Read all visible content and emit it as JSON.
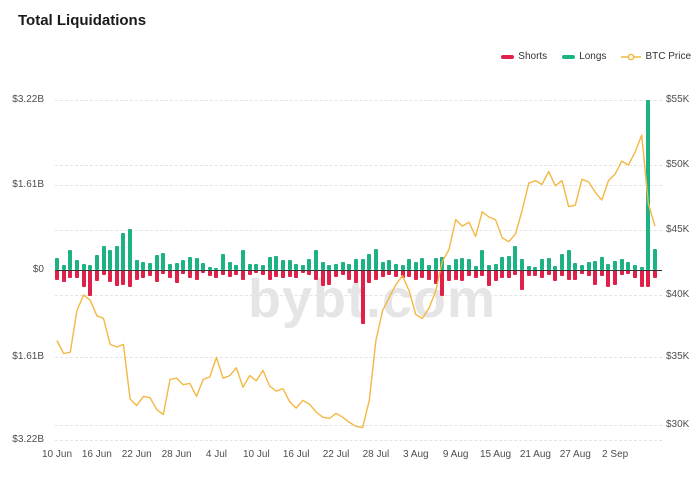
{
  "title": "Total Liquidations",
  "watermark": "bybt.com",
  "colors": {
    "shorts": "#e02048",
    "longs": "#1db283",
    "btc_line": "#f3b843",
    "grid": "#e4e4e4",
    "baseline": "#333333",
    "axis_text": "#4d4d4d",
    "title_text": "#1a1a1a",
    "watermark_text": "#e5e5e5",
    "background": "#ffffff"
  },
  "legend": [
    {
      "label": "Shorts",
      "type": "bar",
      "color": "#e02048"
    },
    {
      "label": "Longs",
      "type": "bar",
      "color": "#1db283"
    },
    {
      "label": "BTC Price",
      "type": "line",
      "color": "#f3b843"
    }
  ],
  "chart_data": {
    "type": "bar",
    "subtype": "combo-dual-axis",
    "grid": true,
    "legend_position": "top-right",
    "x": [
      "10 Jun",
      "11 Jun",
      "12 Jun",
      "13 Jun",
      "14 Jun",
      "15 Jun",
      "16 Jun",
      "17 Jun",
      "18 Jun",
      "19 Jun",
      "20 Jun",
      "21 Jun",
      "22 Jun",
      "23 Jun",
      "24 Jun",
      "25 Jun",
      "26 Jun",
      "27 Jun",
      "28 Jun",
      "29 Jun",
      "30 Jun",
      "1 Jul",
      "2 Jul",
      "3 Jul",
      "4 Jul",
      "5 Jul",
      "6 Jul",
      "7 Jul",
      "8 Jul",
      "9 Jul",
      "10 Jul",
      "11 Jul",
      "12 Jul",
      "13 Jul",
      "14 Jul",
      "15 Jul",
      "16 Jul",
      "17 Jul",
      "18 Jul",
      "19 Jul",
      "20 Jul",
      "21 Jul",
      "22 Jul",
      "23 Jul",
      "24 Jul",
      "25 Jul",
      "26 Jul",
      "27 Jul",
      "28 Jul",
      "29 Jul",
      "30 Jul",
      "31 Jul",
      "1 Aug",
      "2 Aug",
      "3 Aug",
      "4 Aug",
      "5 Aug",
      "6 Aug",
      "7 Aug",
      "8 Aug",
      "9 Aug",
      "10 Aug",
      "11 Aug",
      "12 Aug",
      "13 Aug",
      "14 Aug",
      "15 Aug",
      "16 Aug",
      "17 Aug",
      "18 Aug",
      "19 Aug",
      "20 Aug",
      "21 Aug",
      "22 Aug",
      "23 Aug",
      "24 Aug",
      "25 Aug",
      "26 Aug",
      "27 Aug",
      "28 Aug",
      "29 Aug",
      "30 Aug",
      "31 Aug",
      "1 Sep",
      "2 Sep",
      "3 Sep",
      "4 Sep",
      "5 Sep",
      "6 Sep",
      "7 Sep",
      "8 Sep"
    ],
    "x_tick_every": 6,
    "x_tick_labels": [
      "10 Jun",
      "16 Jun",
      "22 Jun",
      "28 Jun",
      "4 Jul",
      "10 Jul",
      "16 Jul",
      "22 Jul",
      "28 Jul",
      "3 Aug",
      "9 Aug",
      "15 Aug",
      "21 Aug",
      "27 Aug",
      "2 Sep"
    ],
    "series": [
      {
        "name": "Longs",
        "type": "bar",
        "direction": "up",
        "axis": "left",
        "unit": "billion USD",
        "values": [
          0.22,
          0.1,
          0.37,
          0.18,
          0.12,
          0.1,
          0.28,
          0.46,
          0.37,
          0.46,
          0.7,
          0.78,
          0.18,
          0.15,
          0.13,
          0.28,
          0.33,
          0.11,
          0.13,
          0.18,
          0.24,
          0.22,
          0.13,
          0.06,
          0.04,
          0.3,
          0.15,
          0.1,
          0.37,
          0.12,
          0.12,
          0.1,
          0.24,
          0.26,
          0.18,
          0.18,
          0.12,
          0.1,
          0.2,
          0.37,
          0.15,
          0.1,
          0.12,
          0.15,
          0.12,
          0.2,
          0.2,
          0.31,
          0.4,
          0.15,
          0.18,
          0.12,
          0.1,
          0.2,
          0.15,
          0.22,
          0.09,
          0.22,
          0.24,
          0.09,
          0.2,
          0.22,
          0.2,
          0.07,
          0.37,
          0.09,
          0.11,
          0.24,
          0.26,
          0.46,
          0.2,
          0.07,
          0.05,
          0.2,
          0.22,
          0.07,
          0.31,
          0.37,
          0.13,
          0.1,
          0.15,
          0.17,
          0.24,
          0.12,
          0.17,
          0.2,
          0.15,
          0.1,
          0.06,
          3.22,
          0.4
        ]
      },
      {
        "name": "Shorts",
        "type": "bar",
        "direction": "down",
        "axis": "left",
        "unit": "billion USD",
        "values": [
          0.18,
          0.22,
          0.15,
          0.15,
          0.33,
          0.5,
          0.2,
          0.09,
          0.22,
          0.31,
          0.28,
          0.33,
          0.18,
          0.15,
          0.11,
          0.22,
          0.07,
          0.15,
          0.24,
          0.07,
          0.15,
          0.18,
          0.05,
          0.11,
          0.15,
          0.09,
          0.13,
          0.09,
          0.18,
          0.09,
          0.06,
          0.09,
          0.18,
          0.13,
          0.15,
          0.13,
          0.15,
          0.06,
          0.09,
          0.18,
          0.31,
          0.28,
          0.13,
          0.09,
          0.18,
          0.24,
          1.02,
          0.24,
          0.18,
          0.13,
          0.09,
          0.13,
          0.15,
          0.13,
          0.18,
          0.15,
          0.18,
          0.26,
          0.5,
          0.2,
          0.18,
          0.2,
          0.12,
          0.15,
          0.12,
          0.31,
          0.2,
          0.15,
          0.15,
          0.09,
          0.37,
          0.12,
          0.12,
          0.15,
          0.09,
          0.2,
          0.12,
          0.18,
          0.18,
          0.08,
          0.12,
          0.28,
          0.12,
          0.33,
          0.28,
          0.09,
          0.07,
          0.15,
          0.33,
          0.33,
          0.15
        ]
      },
      {
        "name": "BTC Price",
        "type": "line",
        "axis": "right",
        "unit": "thousand USD",
        "values": [
          36.5,
          35.5,
          35.6,
          38.8,
          40.0,
          39.6,
          38.4,
          38.2,
          36.2,
          36.0,
          36.2,
          32.0,
          31.5,
          32.2,
          32.1,
          31.2,
          30.8,
          33.5,
          33.6,
          33.1,
          33.2,
          32.2,
          33.5,
          33.7,
          35.2,
          33.6,
          33.8,
          34.4,
          32.9,
          33.8,
          33.4,
          34.2,
          33.0,
          32.6,
          32.8,
          31.8,
          31.3,
          31.9,
          31.6,
          31.0,
          30.6,
          30.5,
          30.9,
          30.6,
          30.2,
          29.9,
          29.8,
          31.9,
          36.5,
          38.8,
          39.8,
          40.8,
          41.5,
          40.3,
          38.5,
          38.2,
          39.0,
          40.3,
          42.6,
          43.5,
          45.8,
          45.3,
          45.6,
          44.5,
          46.4,
          46.0,
          45.8,
          44.4,
          44.1,
          44.7,
          46.5,
          48.6,
          48.8,
          48.5,
          49.5,
          48.4,
          48.8,
          46.8,
          46.9,
          48.9,
          48.7,
          47.9,
          47.3,
          48.8,
          49.3,
          50.3,
          50.0,
          51.0,
          52.3,
          47.0,
          45.3
        ]
      }
    ],
    "left_axis": {
      "tick_labels": [
        "$3.22B",
        "$1.61B",
        "$0",
        "$1.61B",
        "$3.22B"
      ],
      "tick_values_b": [
        3.22,
        1.61,
        0,
        -1.61,
        -3.22
      ],
      "range_b": [
        -3.22,
        3.22
      ]
    },
    "right_axis": {
      "tick_labels": [
        "$55K",
        "$50K",
        "$45K",
        "$40K",
        "$35K",
        "$30K"
      ],
      "tick_values_k": [
        55,
        50,
        45,
        40,
        35,
        30
      ],
      "range_k": [
        30,
        55
      ]
    }
  }
}
